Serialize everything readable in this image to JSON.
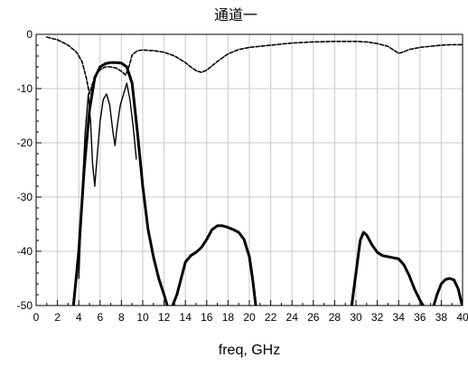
{
  "chart_data": {
    "type": "line",
    "title": "通道一",
    "xlabel": "freq, GHz",
    "ylabel": "",
    "xlim": [
      0,
      40
    ],
    "ylim": [
      -50,
      0
    ],
    "x_ticks": [
      0,
      2,
      4,
      6,
      8,
      10,
      12,
      14,
      16,
      18,
      20,
      22,
      24,
      26,
      28,
      30,
      32,
      34,
      36,
      38,
      40
    ],
    "x_tick_labels": [
      "0",
      "2",
      "4",
      "6",
      "8",
      "10",
      "12",
      "14",
      "16",
      "18",
      "20",
      "22",
      "24",
      "26",
      "28",
      "30",
      "32",
      "34",
      "36",
      "38",
      "40"
    ],
    "y_ticks": [
      0,
      -10,
      -20,
      -30,
      -40,
      -50
    ],
    "y_tick_labels": [
      "0",
      "-10",
      "-20",
      "-30",
      "-40",
      "-50"
    ],
    "grid": true,
    "legend": "none",
    "series": [
      {
        "style": "solid-thick",
        "color": "#000000",
        "segments": [
          [
            [
              3.5,
              -50
            ],
            [
              4.0,
              -40
            ],
            [
              4.5,
              -25
            ],
            [
              5.0,
              -14
            ],
            [
              5.5,
              -8
            ],
            [
              6.0,
              -6.0
            ],
            [
              6.5,
              -5.4
            ],
            [
              7.0,
              -5.2
            ],
            [
              7.5,
              -5.2
            ],
            [
              8.0,
              -5.3
            ],
            [
              8.5,
              -6
            ],
            [
              9.0,
              -9
            ],
            [
              9.5,
              -18
            ],
            [
              10.0,
              -28
            ],
            [
              10.5,
              -36
            ],
            [
              11.0,
              -41
            ],
            [
              11.5,
              -45
            ],
            [
              12.0,
              -48
            ],
            [
              12.3,
              -50
            ]
          ],
          [
            [
              12.8,
              -50
            ],
            [
              13.2,
              -48
            ],
            [
              13.6,
              -45
            ],
            [
              14.0,
              -42
            ],
            [
              14.5,
              -40.8
            ],
            [
              15.0,
              -40.2
            ],
            [
              15.5,
              -39.3
            ],
            [
              16.0,
              -37.8
            ],
            [
              16.5,
              -36
            ],
            [
              17.0,
              -35.3
            ],
            [
              17.5,
              -35.3
            ],
            [
              18.0,
              -35.6
            ],
            [
              18.5,
              -36
            ],
            [
              19.0,
              -36.5
            ],
            [
              19.5,
              -37.8
            ],
            [
              20.0,
              -41
            ],
            [
              20.3,
              -45
            ],
            [
              20.6,
              -50
            ]
          ],
          [
            [
              29.6,
              -50
            ],
            [
              30.0,
              -44
            ],
            [
              30.4,
              -38
            ],
            [
              30.7,
              -36.5
            ],
            [
              31.0,
              -37
            ],
            [
              31.5,
              -38.8
            ],
            [
              32.0,
              -40.2
            ],
            [
              32.5,
              -40.8
            ],
            [
              33.0,
              -41
            ],
            [
              33.5,
              -41.2
            ],
            [
              34.0,
              -41.4
            ],
            [
              34.5,
              -42.5
            ],
            [
              35.0,
              -44.5
            ],
            [
              35.5,
              -47
            ],
            [
              36.0,
              -49
            ],
            [
              36.3,
              -50
            ]
          ],
          [
            [
              37.3,
              -50
            ],
            [
              37.6,
              -48
            ],
            [
              38.0,
              -46
            ],
            [
              38.4,
              -45.2
            ],
            [
              38.8,
              -45
            ],
            [
              39.2,
              -45.3
            ],
            [
              39.6,
              -47
            ],
            [
              39.9,
              -49.5
            ],
            [
              40.0,
              -50
            ]
          ]
        ]
      },
      {
        "style": "solid-thin",
        "color": "#000000",
        "segments": [
          [
            [
              4.0,
              -45
            ],
            [
              4.3,
              -30
            ],
            [
              4.6,
              -18
            ],
            [
              4.9,
              -11
            ],
            [
              5.1,
              -16
            ],
            [
              5.3,
              -24
            ],
            [
              5.5,
              -28
            ],
            [
              5.7,
              -23
            ],
            [
              6.0,
              -16
            ],
            [
              6.3,
              -12
            ],
            [
              6.6,
              -11
            ],
            [
              6.9,
              -13
            ],
            [
              7.2,
              -18
            ],
            [
              7.4,
              -20.5
            ],
            [
              7.6,
              -17
            ],
            [
              7.9,
              -13
            ],
            [
              8.2,
              -11
            ],
            [
              8.5,
              -9
            ],
            [
              8.8,
              -12
            ],
            [
              9.1,
              -17
            ],
            [
              9.4,
              -23
            ]
          ]
        ]
      },
      {
        "style": "dashed",
        "color": "#000000",
        "segments": [
          [
            [
              1.0,
              -0.5
            ],
            [
              2.0,
              -1.0
            ],
            [
              3.0,
              -2.0
            ],
            [
              3.8,
              -3.3
            ],
            [
              4.3,
              -5.0
            ],
            [
              4.7,
              -8.0
            ],
            [
              5.0,
              -11
            ],
            [
              5.3,
              -9
            ],
            [
              5.6,
              -7.5
            ],
            [
              6.0,
              -6.5
            ],
            [
              6.5,
              -6.0
            ],
            [
              7.0,
              -6.0
            ],
            [
              7.5,
              -6.2
            ],
            [
              8.0,
              -6.8
            ],
            [
              8.4,
              -7.5
            ],
            [
              8.7,
              -6
            ],
            [
              9.0,
              -3.8
            ],
            [
              9.5,
              -3.0
            ],
            [
              10.0,
              -2.9
            ],
            [
              11.0,
              -3.0
            ],
            [
              12.0,
              -3.3
            ],
            [
              13.0,
              -4.0
            ],
            [
              14.0,
              -5.2
            ],
            [
              14.5,
              -6.0
            ],
            [
              15.0,
              -6.7
            ],
            [
              15.5,
              -7.0
            ],
            [
              16.0,
              -6.6
            ],
            [
              17.0,
              -5.0
            ],
            [
              18.0,
              -3.6
            ],
            [
              19.0,
              -2.8
            ],
            [
              20.0,
              -2.4
            ],
            [
              22.0,
              -2.0
            ],
            [
              24.0,
              -1.6
            ],
            [
              26.0,
              -1.4
            ],
            [
              28.0,
              -1.3
            ],
            [
              30.0,
              -1.3
            ],
            [
              31.0,
              -1.4
            ],
            [
              32.0,
              -1.7
            ],
            [
              33.0,
              -2.2
            ],
            [
              33.6,
              -3.0
            ],
            [
              34.0,
              -3.5
            ],
            [
              34.5,
              -3.2
            ],
            [
              35.0,
              -2.8
            ],
            [
              36.0,
              -2.4
            ],
            [
              37.0,
              -2.2
            ],
            [
              38.0,
              -2.0
            ],
            [
              39.0,
              -1.9
            ],
            [
              40.0,
              -1.9
            ]
          ]
        ]
      }
    ]
  }
}
